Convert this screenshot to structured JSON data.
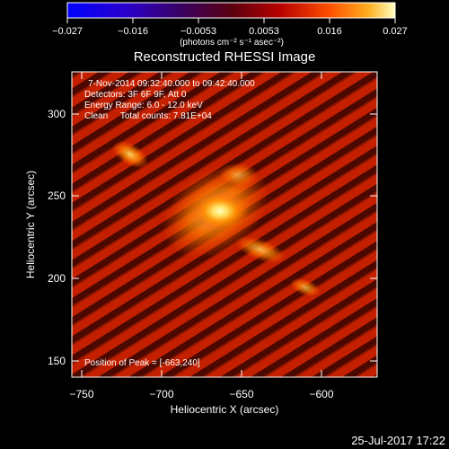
{
  "colorbar": {
    "tick_labels": [
      "−0.027",
      "−0.016",
      "−0.0053",
      "0.0053",
      "0.016",
      "0.027"
    ],
    "units_label": "(photons cm⁻² s⁻¹ asec⁻²)"
  },
  "plot": {
    "title": "Reconstructed RHESSI Image",
    "info": {
      "time_range": "7-Nov-2014 09:32:40.000 to 09:42:40.000",
      "detectors": "Detectors: 3F 6F 9F, Att 0",
      "energy_range": "Energy Range: 6.0 - 12.0 keV",
      "clean": "Clean     Total counts: 7.81E+04",
      "peak": "Position of Peak = [-663,240]"
    },
    "x_axis": {
      "label": "Heliocentric X (arcsec)",
      "ticks": [
        "−750",
        "−700",
        "−650",
        "−600"
      ]
    },
    "y_axis": {
      "label": "Heliocentric Y (arcsec)",
      "ticks": [
        "150",
        "200",
        "250",
        "300"
      ]
    }
  },
  "footer": {
    "date": "25-Jul-2017 17:22"
  }
}
